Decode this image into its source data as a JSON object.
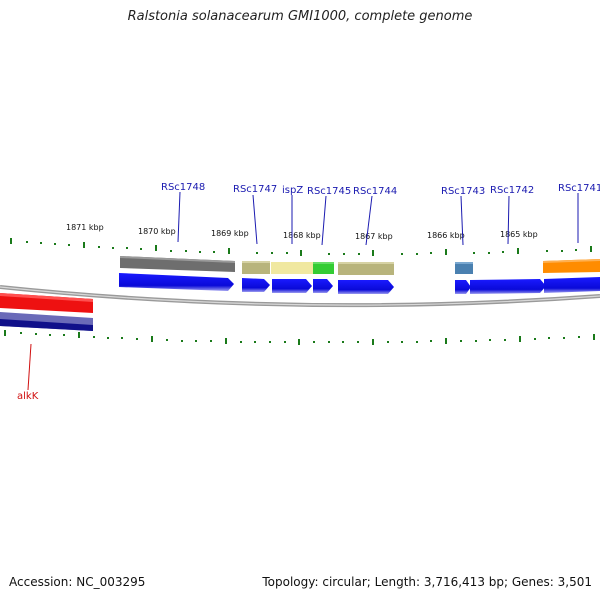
{
  "title": "Ralstonia solanacearum GMI1000, complete genome",
  "footer": {
    "accession": "Accession: NC_003295",
    "topology": "Topology: circular; Length: 3,716,413 bp; Genes: 3,501"
  },
  "scale_labels": [
    "1871 kbp",
    "1870 kbp",
    "1869 kbp",
    "1868 kbp",
    "1867 kbp",
    "1866 kbp",
    "1865 kbp"
  ],
  "gene_labels": [
    "RSc1748",
    "RSc1747",
    "ispZ",
    "RSc1745",
    "RSc1744",
    "RSc1743",
    "RSc1742",
    "RSc1741"
  ],
  "other_strand_label": "alkK",
  "colors": {
    "cds": "#1010ee",
    "cog_gray": "#6e6e6e",
    "cog_khaki": "#b8b47c",
    "cog_lightyellow": "#f0e8a0",
    "cog_green": "#33cc33",
    "cog_steelblue": "#4a80b0",
    "cog_orange": "#ff8c00",
    "cog_red": "#ee1111",
    "cog_slate": "#6a6ab8",
    "tick": "#1a7a1a",
    "label_line": "#1a1ab0"
  }
}
